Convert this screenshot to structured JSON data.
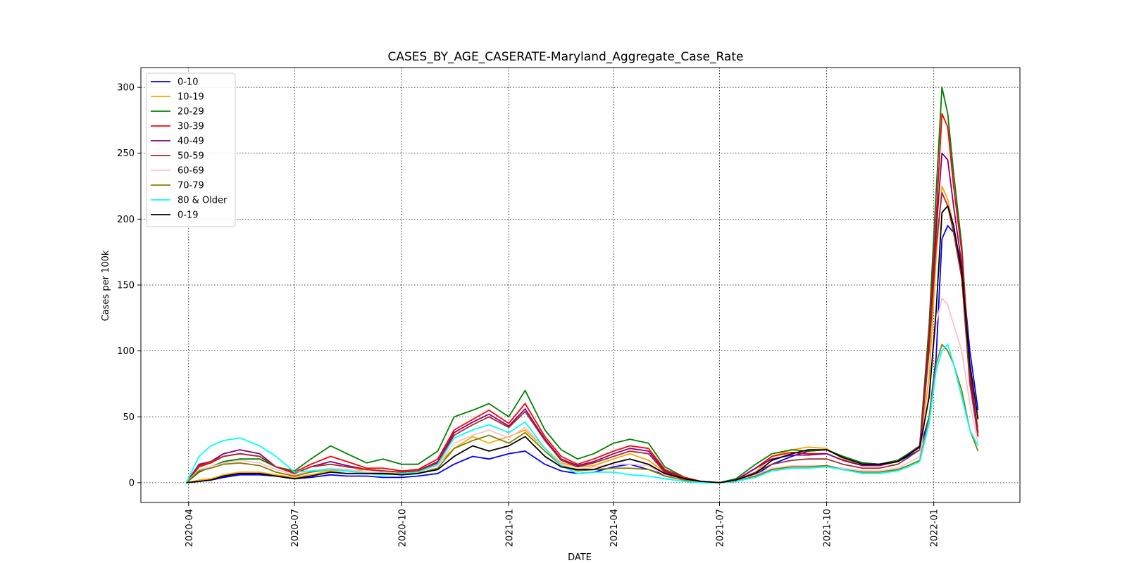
{
  "chart_data": {
    "type": "line",
    "title": "CASES_BY_AGE_CASERATE-Maryland_Aggregate_Case_Rate",
    "xlabel": "DATE",
    "ylabel": "Cases per 100k",
    "xlim": [
      "2020-02-20",
      "2022-03-16"
    ],
    "ylim": [
      -15,
      315
    ],
    "grid": true,
    "legend_position": "upper left",
    "x_ticks": [
      "2020-04",
      "2020-07",
      "2020-10",
      "2021-01",
      "2021-04",
      "2021-07",
      "2021-10",
      "2022-01"
    ],
    "y_ticks": [
      0,
      50,
      100,
      150,
      200,
      250,
      300
    ],
    "x": [
      "2020-03-30",
      "2020-04-10",
      "2020-04-20",
      "2020-05-01",
      "2020-05-15",
      "2020-06-01",
      "2020-06-15",
      "2020-07-01",
      "2020-07-15",
      "2020-08-01",
      "2020-08-15",
      "2020-09-01",
      "2020-09-15",
      "2020-10-01",
      "2020-10-15",
      "2020-11-01",
      "2020-11-15",
      "2020-12-01",
      "2020-12-15",
      "2021-01-01",
      "2021-01-15",
      "2021-02-01",
      "2021-02-15",
      "2021-03-01",
      "2021-03-15",
      "2021-04-01",
      "2021-04-15",
      "2021-05-01",
      "2021-05-15",
      "2021-06-01",
      "2021-06-15",
      "2021-07-01",
      "2021-07-15",
      "2021-08-01",
      "2021-08-15",
      "2021-09-01",
      "2021-09-15",
      "2021-10-01",
      "2021-10-15",
      "2021-11-01",
      "2021-11-15",
      "2021-12-01",
      "2021-12-10",
      "2021-12-20",
      "2021-12-28",
      "2022-01-03",
      "2022-01-08",
      "2022-01-13",
      "2022-01-18",
      "2022-01-25",
      "2022-02-01",
      "2022-02-08"
    ],
    "series": [
      {
        "name": "0-10",
        "color": "#0000ff",
        "values": [
          0,
          1,
          2,
          4,
          6,
          6,
          5,
          3,
          4,
          6,
          5,
          5,
          4,
          4,
          5,
          7,
          14,
          20,
          18,
          22,
          24,
          14,
          9,
          7,
          8,
          12,
          14,
          10,
          6,
          3,
          1,
          0,
          1,
          6,
          14,
          20,
          24,
          25,
          20,
          15,
          14,
          16,
          20,
          25,
          50,
          95,
          185,
          195,
          190,
          165,
          100,
          55
        ]
      },
      {
        "name": "10-19",
        "color": "#ffa500",
        "values": [
          0,
          2,
          3,
          6,
          8,
          8,
          6,
          4,
          6,
          9,
          9,
          10,
          9,
          8,
          10,
          14,
          26,
          35,
          30,
          35,
          40,
          26,
          15,
          12,
          13,
          18,
          22,
          17,
          8,
          4,
          1,
          0,
          2,
          8,
          20,
          25,
          27,
          26,
          18,
          13,
          14,
          17,
          22,
          28,
          80,
          170,
          225,
          215,
          195,
          160,
          80,
          42
        ]
      },
      {
        "name": "20-29",
        "color": "#008000",
        "values": [
          0,
          8,
          12,
          16,
          18,
          18,
          12,
          9,
          18,
          28,
          22,
          15,
          18,
          14,
          14,
          24,
          50,
          55,
          60,
          50,
          70,
          40,
          25,
          18,
          22,
          30,
          33,
          30,
          12,
          4,
          1,
          0,
          3,
          14,
          22,
          25,
          24,
          25,
          20,
          15,
          14,
          17,
          22,
          28,
          120,
          220,
          300,
          280,
          235,
          180,
          85,
          35
        ]
      },
      {
        "name": "30-39",
        "color": "#ff0000",
        "values": [
          0,
          12,
          15,
          20,
          22,
          20,
          12,
          8,
          14,
          20,
          16,
          11,
          11,
          9,
          10,
          18,
          40,
          48,
          55,
          45,
          60,
          35,
          20,
          14,
          18,
          24,
          28,
          26,
          10,
          4,
          1,
          0,
          2,
          11,
          20,
          23,
          22,
          22,
          17,
          13,
          13,
          16,
          21,
          28,
          110,
          200,
          280,
          270,
          225,
          175,
          85,
          38
        ]
      },
      {
        "name": "40-49",
        "color": "#800080",
        "values": [
          0,
          14,
          16,
          22,
          25,
          22,
          12,
          7,
          12,
          16,
          13,
          10,
          9,
          8,
          9,
          16,
          38,
          46,
          52,
          43,
          56,
          33,
          18,
          13,
          16,
          22,
          26,
          24,
          9,
          3,
          1,
          0,
          2,
          11,
          18,
          21,
          21,
          22,
          17,
          13,
          13,
          16,
          21,
          28,
          105,
          190,
          250,
          245,
          210,
          165,
          80,
          38
        ]
      },
      {
        "name": "50-59",
        "color": "#a52a2a",
        "values": [
          0,
          13,
          16,
          20,
          22,
          20,
          12,
          7,
          12,
          14,
          12,
          10,
          9,
          8,
          9,
          15,
          36,
          44,
          50,
          42,
          54,
          32,
          17,
          12,
          15,
          20,
          24,
          22,
          8,
          3,
          1,
          0,
          2,
          8,
          14,
          17,
          18,
          18,
          14,
          11,
          11,
          14,
          19,
          25,
          100,
          180,
          220,
          210,
          190,
          155,
          75,
          35
        ]
      },
      {
        "name": "60-69",
        "color": "#ffc0cb",
        "values": [
          0,
          10,
          12,
          15,
          17,
          15,
          10,
          6,
          9,
          11,
          10,
          8,
          8,
          7,
          8,
          13,
          30,
          36,
          40,
          34,
          42,
          26,
          14,
          10,
          12,
          14,
          14,
          13,
          6,
          2,
          1,
          0,
          1,
          6,
          11,
          13,
          13,
          13,
          11,
          9,
          9,
          11,
          15,
          20,
          70,
          120,
          140,
          135,
          120,
          100,
          60,
          30
        ]
      },
      {
        "name": "70-79",
        "color": "#808000",
        "values": [
          0,
          9,
          11,
          14,
          15,
          13,
          8,
          5,
          8,
          10,
          9,
          7,
          7,
          7,
          7,
          11,
          26,
          32,
          36,
          30,
          38,
          24,
          13,
          9,
          10,
          11,
          11,
          10,
          5,
          2,
          1,
          0,
          1,
          5,
          10,
          12,
          12,
          13,
          10,
          8,
          8,
          10,
          13,
          17,
          50,
          90,
          105,
          100,
          90,
          70,
          40,
          24
        ]
      },
      {
        "name": "80 & Older",
        "color": "#00ffff",
        "values": [
          0,
          20,
          28,
          32,
          34,
          28,
          20,
          8,
          9,
          10,
          9,
          7,
          6,
          7,
          8,
          14,
          34,
          40,
          44,
          38,
          46,
          26,
          13,
          7,
          8,
          8,
          6,
          5,
          3,
          1,
          0,
          0,
          1,
          4,
          9,
          11,
          11,
          12,
          10,
          7,
          7,
          9,
          12,
          16,
          45,
          85,
          100,
          105,
          90,
          65,
          40,
          28
        ]
      },
      {
        "name": "0-19",
        "color": "#000000",
        "values": [
          0,
          1,
          2,
          5,
          7,
          7,
          5,
          3,
          5,
          8,
          7,
          7,
          7,
          6,
          7,
          10,
          20,
          28,
          24,
          28,
          35,
          20,
          12,
          10,
          10,
          15,
          18,
          14,
          7,
          3,
          1,
          0,
          2,
          7,
          17,
          22,
          25,
          25,
          19,
          14,
          14,
          16,
          21,
          27,
          65,
          130,
          205,
          210,
          195,
          160,
          90,
          48
        ]
      }
    ]
  }
}
